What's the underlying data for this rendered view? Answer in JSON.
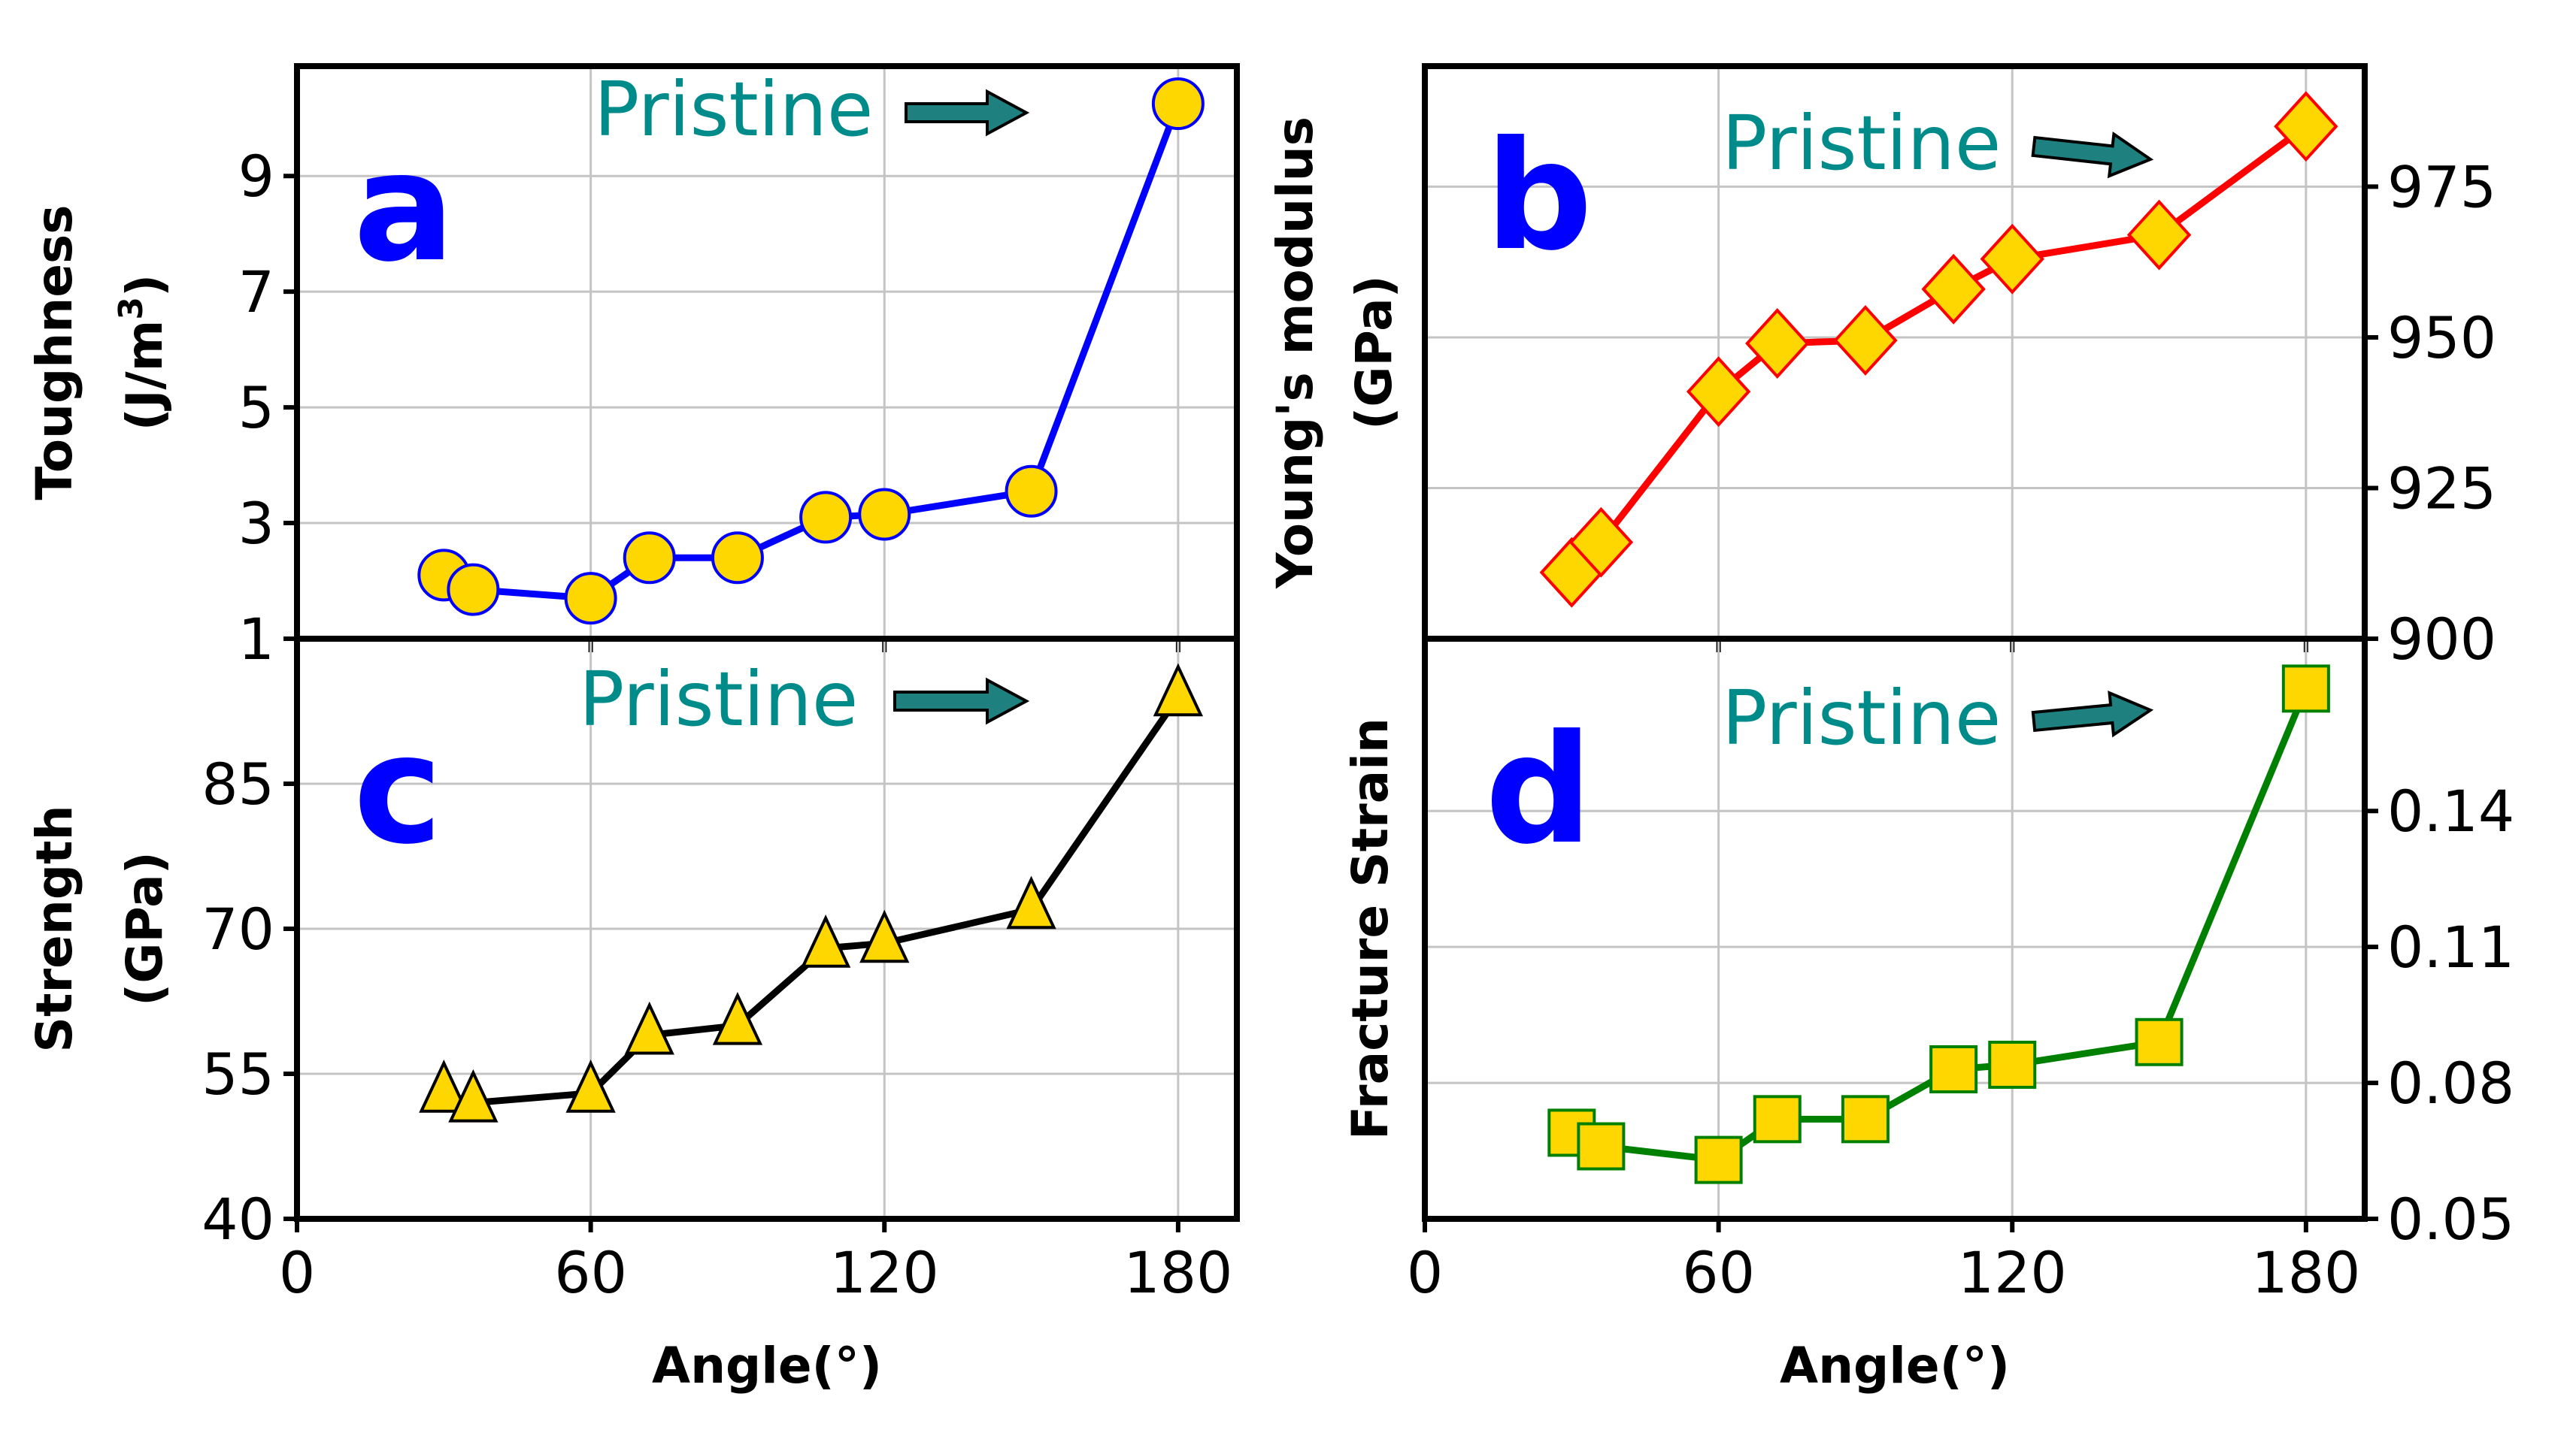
{
  "chart_data": [
    {
      "id": "a",
      "type": "line",
      "panel_label": "a",
      "ylabel": "Toughness",
      "ylabel_unit": "(J/m",
      "ylabel_unit_sup": "3",
      "ylabel_unit_close": ")",
      "xlabel": "",
      "annotation": "Pristine",
      "x": [
        30,
        36,
        60,
        72,
        90,
        108,
        120,
        150,
        180
      ],
      "y": [
        2.1,
        1.85,
        1.7,
        2.4,
        2.4,
        3.1,
        3.15,
        3.55,
        10.25
      ],
      "xlim": [
        0,
        192
      ],
      "ylim": [
        1,
        10.9
      ],
      "xticks": [
        0,
        60,
        120,
        180
      ],
      "yticks": [
        1,
        3,
        5,
        7,
        9
      ],
      "ytick_labels": [
        "1",
        "3",
        "5",
        "7",
        "9"
      ],
      "grid": true,
      "color": "#0000ff",
      "marker": "circle",
      "marker_fill": "#ffd700",
      "letter_color": "#0000ff",
      "annotation_color": "#008b8b"
    },
    {
      "id": "b",
      "type": "line",
      "panel_label": "b",
      "ylabel": "Young's modulus",
      "ylabel_unit": "(GPa)",
      "xlabel": "",
      "annotation": "Pristine",
      "x": [
        30,
        36,
        60,
        72,
        90,
        108,
        120,
        150,
        180
      ],
      "y": [
        911,
        916,
        941,
        949,
        949.5,
        958,
        963,
        967,
        985
      ],
      "xlim": [
        0,
        192
      ],
      "ylim": [
        900,
        995
      ],
      "xticks": [
        0,
        60,
        120,
        180
      ],
      "yticks": [
        900,
        925,
        950,
        975
      ],
      "ytick_labels": [
        "900",
        "925",
        "950",
        "975"
      ],
      "grid": true,
      "color": "#ff0000",
      "marker": "diamond",
      "marker_fill": "#ffd700",
      "letter_color": "#0000ff",
      "annotation_color": "#008b8b"
    },
    {
      "id": "c",
      "type": "line",
      "panel_label": "c",
      "ylabel": "Strength",
      "ylabel_unit": "(GPa)",
      "xlabel": "Angle(°)",
      "annotation": "Pristine",
      "x": [
        30,
        36,
        60,
        72,
        90,
        108,
        120,
        150,
        180
      ],
      "y": [
        53,
        52,
        53,
        59,
        60,
        68,
        68.5,
        72,
        94
      ],
      "xlim": [
        0,
        192
      ],
      "ylim": [
        40,
        100
      ],
      "xticks": [
        0,
        60,
        120,
        180
      ],
      "xtick_labels": [
        "0",
        "60",
        "120",
        "180"
      ],
      "yticks": [
        40,
        55,
        70,
        85
      ],
      "ytick_labels": [
        "40",
        "55",
        "70",
        "85"
      ],
      "grid": true,
      "color": "#000000",
      "marker": "triangle",
      "marker_fill": "#ffd700",
      "letter_color": "#0000ff",
      "annotation_color": "#008b8b"
    },
    {
      "id": "d",
      "type": "line",
      "panel_label": "d",
      "ylabel": "Fracture Strain",
      "xlabel": "Angle(°)",
      "annotation": "Pristine",
      "x": [
        30,
        36,
        60,
        72,
        90,
        108,
        120,
        150,
        180
      ],
      "y": [
        0.069,
        0.066,
        0.063,
        0.072,
        0.072,
        0.083,
        0.084,
        0.089,
        0.167
      ],
      "xlim": [
        0,
        192
      ],
      "ylim": [
        0.05,
        0.178
      ],
      "xticks": [
        0,
        60,
        120,
        180
      ],
      "xtick_labels": [
        "0",
        "60",
        "120",
        "180"
      ],
      "yticks": [
        0.05,
        0.08,
        0.11,
        0.14
      ],
      "ytick_labels": [
        "0.05",
        "0.08",
        "0.11",
        "0.14"
      ],
      "grid": true,
      "color": "#008000",
      "marker": "square",
      "marker_fill": "#ffd700",
      "letter_color": "#0000ff",
      "annotation_color": "#008b8b"
    }
  ]
}
